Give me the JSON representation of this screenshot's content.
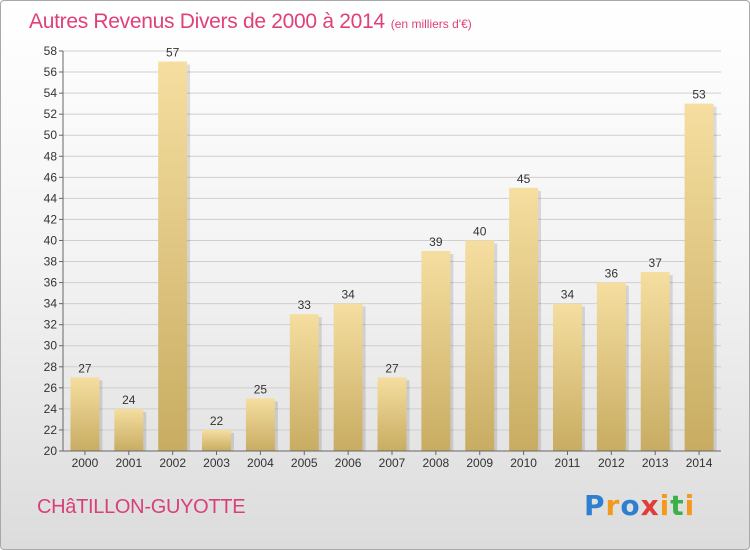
{
  "header": {
    "title": "Autres Revenus Divers de 2000 à 2014",
    "subtitle": "(en milliers d'€)"
  },
  "footer": {
    "city": "CHâTILLON-GUYOTTE",
    "logo": "Proxiti",
    "logo_colors": [
      "#2f7fd0",
      "#f39a1e",
      "#e03c3c",
      "#3bb04a"
    ]
  },
  "chart_data": {
    "type": "bar",
    "title": "Autres Revenus Divers de 2000 à 2014",
    "subtitle": "(en milliers d'€)",
    "categories": [
      "2000",
      "2001",
      "2002",
      "2003",
      "2004",
      "2005",
      "2006",
      "2007",
      "2008",
      "2009",
      "2010",
      "2011",
      "2012",
      "2013",
      "2014"
    ],
    "values": [
      27,
      24,
      57,
      22,
      25,
      33,
      34,
      27,
      39,
      40,
      45,
      34,
      36,
      37,
      53
    ],
    "ylim": [
      20,
      58
    ],
    "ytick_step": 2,
    "grid": true,
    "bar_color_top": "#f5dea0",
    "bar_color_bottom": "#c8ac62",
    "xlabel": "",
    "ylabel": ""
  }
}
